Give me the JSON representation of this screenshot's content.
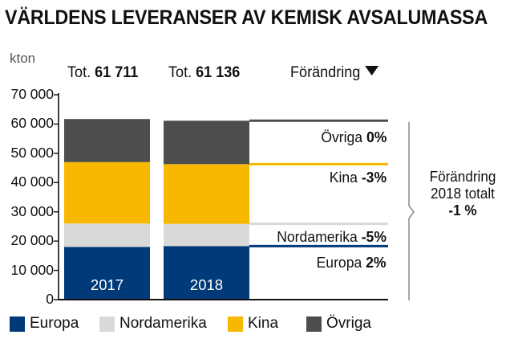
{
  "title": "VÄRLDENS LEVERANSER AV KEMISK AVSALUMASSA",
  "unit": "kton",
  "totals": [
    {
      "prefix": "Tot.",
      "value": "61 711"
    },
    {
      "prefix": "Tot.",
      "value": "61 136"
    }
  ],
  "change_header": "Förändring",
  "changes": [
    {
      "label": "Övriga",
      "value": "0%"
    },
    {
      "label": "Kina",
      "value": "-3%"
    },
    {
      "label": "Nordamerika",
      "value": "-5%"
    },
    {
      "label": "Europa",
      "value": "2%"
    }
  ],
  "total_change": {
    "line1": "Förändring",
    "line2": "2018 totalt",
    "value": "-1 %"
  },
  "legend": [
    {
      "label": "Europa",
      "color": "#003a78"
    },
    {
      "label": "Nordamerika",
      "color": "#d9d9d9"
    },
    {
      "label": "Kina",
      "color": "#f8b800"
    },
    {
      "label": "Övriga",
      "color": "#4d4d4d"
    }
  ],
  "chart_data": {
    "type": "stacked-bar",
    "title": "VÄRLDENS LEVERANSER AV KEMISK AVSALUMASSA",
    "ylabel": "kton",
    "ylim": [
      0,
      70000
    ],
    "yticks": [
      "0",
      "10 000",
      "20 000",
      "30 000",
      "40 000",
      "50 000",
      "60 000",
      "70 000"
    ],
    "categories": [
      "2017",
      "2018"
    ],
    "series": [
      {
        "name": "Europa",
        "color": "#003a78",
        "values": [
          18000,
          18300
        ]
      },
      {
        "name": "Nordamerika",
        "color": "#d9d9d9",
        "values": [
          8000,
          7600
        ]
      },
      {
        "name": "Kina",
        "color": "#f8b800",
        "values": [
          21000,
          20400
        ]
      },
      {
        "name": "Övriga",
        "color": "#4d4d4d",
        "values": [
          14711,
          14836
        ]
      }
    ]
  }
}
